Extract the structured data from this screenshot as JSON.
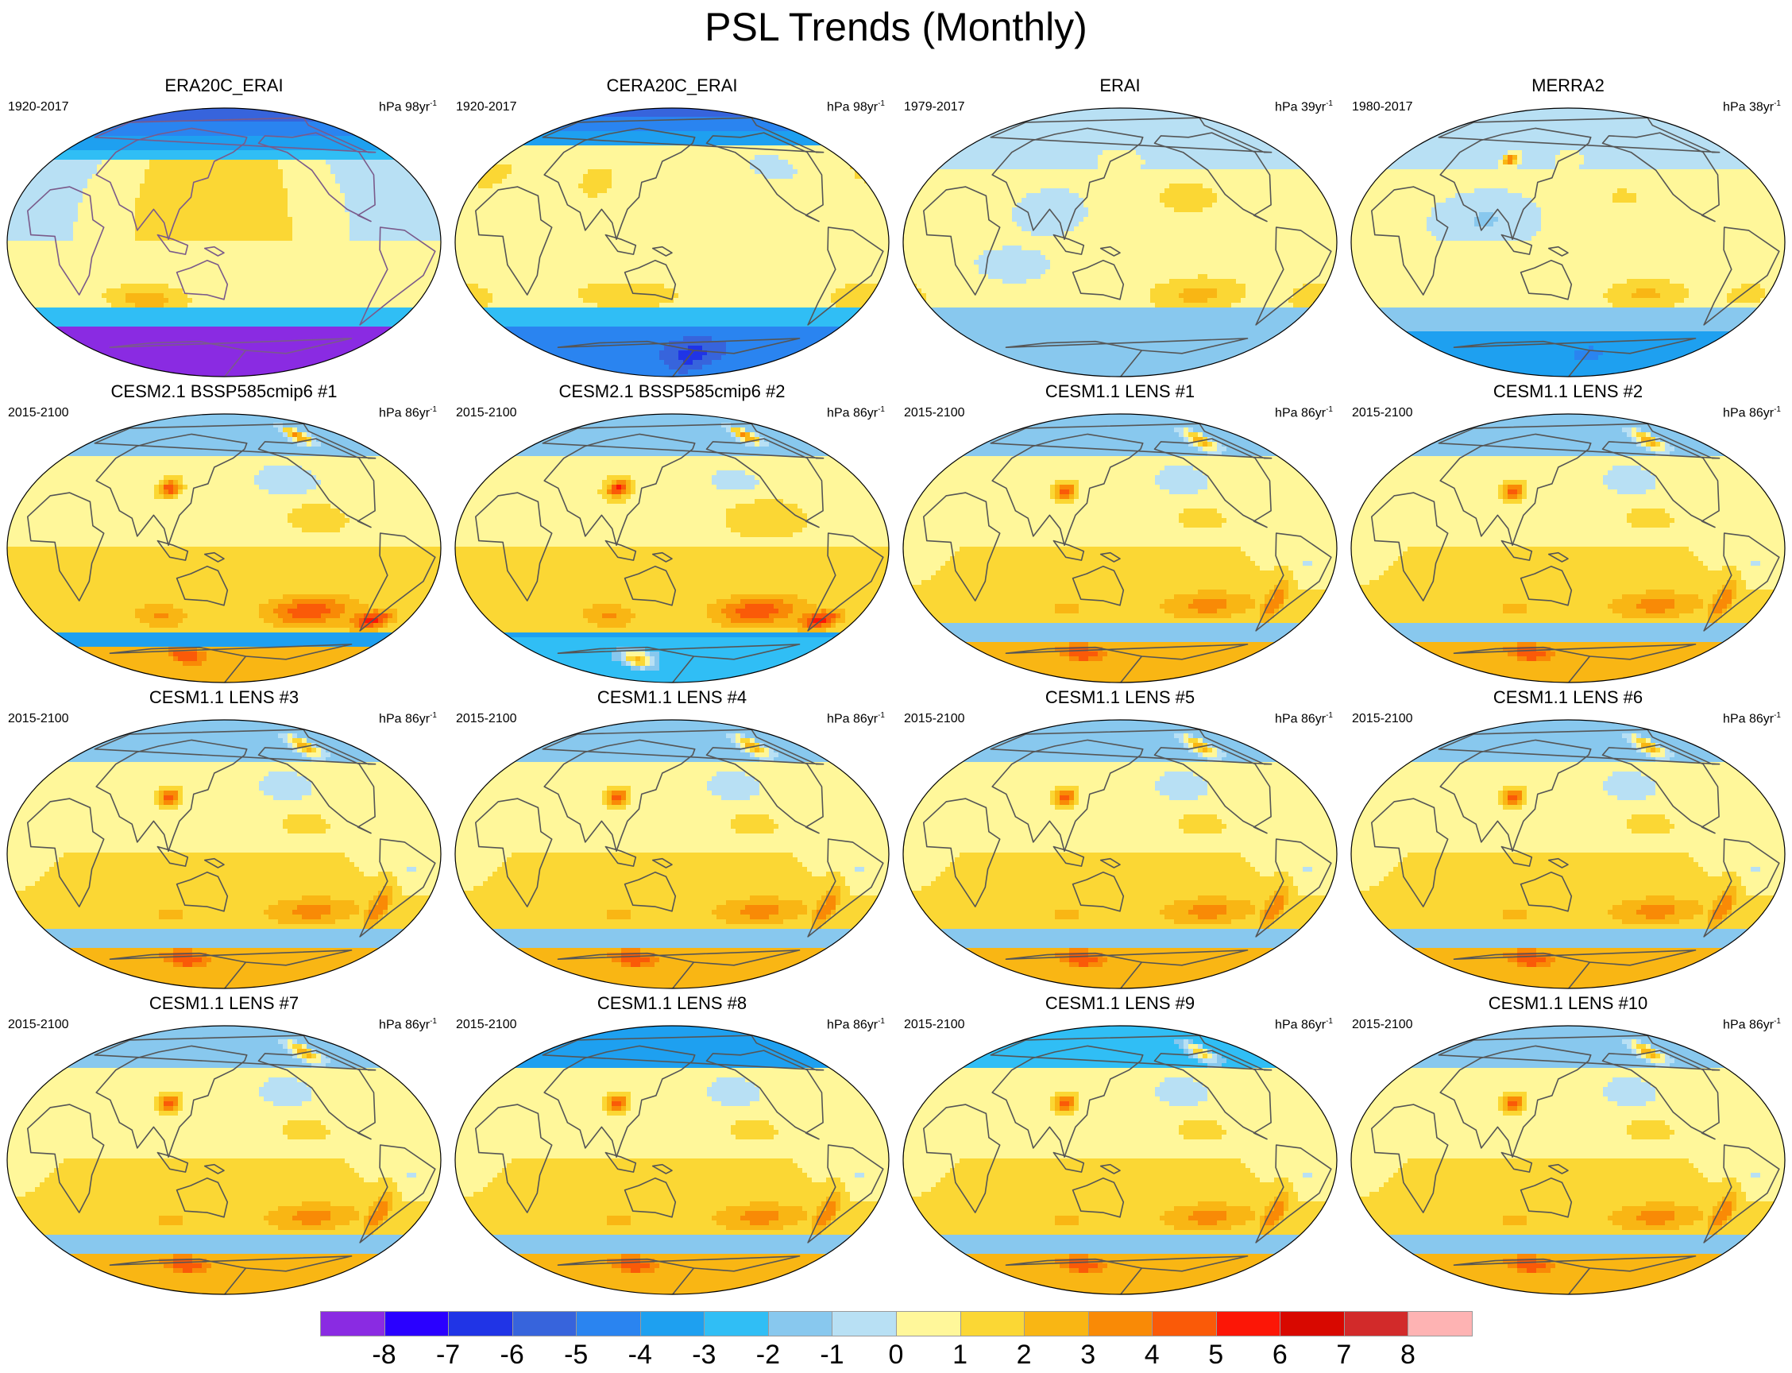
{
  "title": "PSL Trends (Monthly)",
  "panels": [
    {
      "title": "ERA20C_ERAI",
      "period": "1920-2017",
      "units": "hPa 98yr",
      "sup": "-1",
      "field": "rean20",
      "coast": "#7a5a8a"
    },
    {
      "title": "CERA20C_ERAI",
      "period": "1920-2017",
      "units": "hPa 98yr",
      "sup": "-1",
      "field": "cera20",
      "coast": "#555555"
    },
    {
      "title": "ERAI",
      "period": "1979-2017",
      "units": "hPa 39yr",
      "sup": "-1",
      "field": "erai",
      "coast": "#555555"
    },
    {
      "title": "MERRA2",
      "period": "1980-2017",
      "units": "hPa 38yr",
      "sup": "-1",
      "field": "merra",
      "coast": "#555555"
    },
    {
      "title": "CESM2.1 BSSP585cmip6 #1",
      "period": "2015-2100",
      "units": "hPa 86yr",
      "sup": "-1",
      "field": "cesm2",
      "coast": "#555555"
    },
    {
      "title": "CESM2.1 BSSP585cmip6 #2",
      "period": "2015-2100",
      "units": "hPa 86yr",
      "sup": "-1",
      "field": "cesm2b",
      "coast": "#555555"
    },
    {
      "title": "CESM1.1 LENS #1",
      "period": "2015-2100",
      "units": "hPa 86yr",
      "sup": "-1",
      "field": "lens",
      "coast": "#555555"
    },
    {
      "title": "CESM1.1 LENS #2",
      "period": "2015-2100",
      "units": "hPa 86yr",
      "sup": "-1",
      "field": "lens",
      "coast": "#555555"
    },
    {
      "title": "CESM1.1 LENS #3",
      "period": "2015-2100",
      "units": "hPa 86yr",
      "sup": "-1",
      "field": "lens",
      "coast": "#555555"
    },
    {
      "title": "CESM1.1 LENS #4",
      "period": "2015-2100",
      "units": "hPa 86yr",
      "sup": "-1",
      "field": "lens",
      "coast": "#555555"
    },
    {
      "title": "CESM1.1 LENS #5",
      "period": "2015-2100",
      "units": "hPa 86yr",
      "sup": "-1",
      "field": "lens",
      "coast": "#555555"
    },
    {
      "title": "CESM1.1 LENS #6",
      "period": "2015-2100",
      "units": "hPa 86yr",
      "sup": "-1",
      "field": "lens",
      "coast": "#555555"
    },
    {
      "title": "CESM1.1 LENS #7",
      "period": "2015-2100",
      "units": "hPa 86yr",
      "sup": "-1",
      "field": "lens",
      "coast": "#555555"
    },
    {
      "title": "CESM1.1 LENS #8",
      "period": "2015-2100",
      "units": "hPa 86yr",
      "sup": "-1",
      "field": "lens8",
      "coast": "#555555"
    },
    {
      "title": "CESM1.1 LENS #9",
      "period": "2015-2100",
      "units": "hPa 86yr",
      "sup": "-1",
      "field": "lens9",
      "coast": "#555555"
    },
    {
      "title": "CESM1.1 LENS #10",
      "period": "2015-2100",
      "units": "hPa 86yr",
      "sup": "-1",
      "field": "lens",
      "coast": "#555555"
    }
  ],
  "colorbar": {
    "labels": [
      "-8",
      "-7",
      "-6",
      "-5",
      "-4",
      "-3",
      "-2",
      "-1",
      "0",
      "1",
      "2",
      "3",
      "4",
      "5",
      "6",
      "7",
      "8"
    ],
    "colors": [
      "#8a2be2",
      "#2a00ff",
      "#2034e6",
      "#3764dc",
      "#2a84f0",
      "#1ea0f0",
      "#30bef5",
      "#88c8ee",
      "#b8e0f4",
      "#fff79a",
      "#fbd734",
      "#f9b614",
      "#f98a06",
      "#fa5a08",
      "#fc1606",
      "#d80800",
      "#d22a2a",
      "#feb3b3"
    ]
  }
}
